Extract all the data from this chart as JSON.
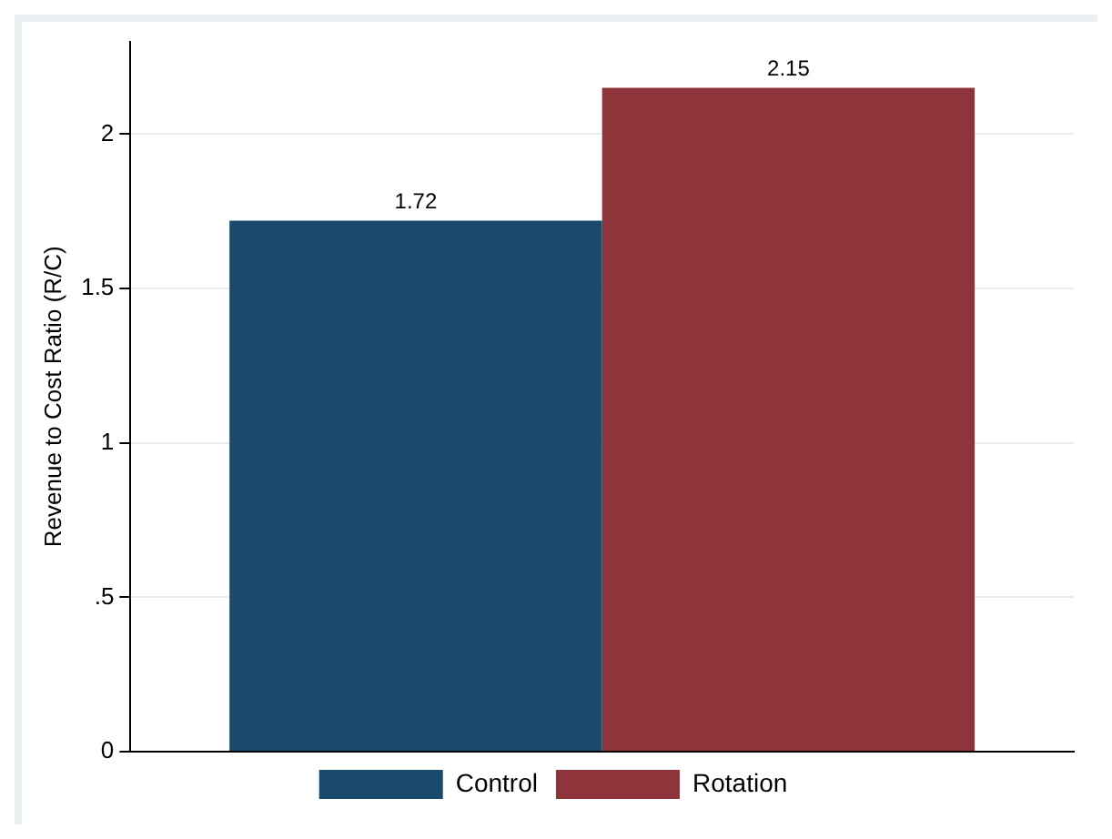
{
  "chart_data": {
    "type": "bar",
    "ylabel": "Revenue to Cost Ratio (R/C)",
    "categories": [
      null
    ],
    "series": [
      {
        "name": "Control",
        "color": "#1b4a6f",
        "values": [
          1.72
        ]
      },
      {
        "name": "Rotation",
        "color": "#8e353c",
        "values": [
          2.15
        ]
      }
    ],
    "ylim": [
      0,
      2.3
    ],
    "yticks": [
      0,
      {
        "value": 0.5,
        "label": ".5"
      },
      1,
      1.5,
      2
    ],
    "grid": "y",
    "legend": "bottom",
    "data_labels": true
  }
}
